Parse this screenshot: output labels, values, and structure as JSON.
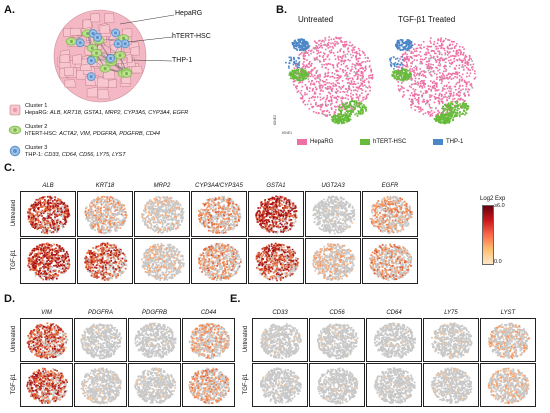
{
  "panels": {
    "a": "A.",
    "b": "B.",
    "c": "C.",
    "d": "D.",
    "e": "E."
  },
  "panel_a": {
    "labels": {
      "hepa": "HepaRG",
      "hsc": "hTERT-HSC",
      "thp": "THP-1"
    },
    "clusters": [
      {
        "title": "Cluster 1",
        "prefix": "HepaRG: ",
        "genes": "ALB, KRT18, GSTA1, MRP2, CYP3A5, CYP3A4, EGFR"
      },
      {
        "title": "Cluster 2",
        "prefix": "hTERT-HSC: ",
        "genes": "ACTA2, VIM, PDGFRA, PDGFRB, CD44"
      },
      {
        "title": "Cluster 3",
        "prefix": "THP-1: ",
        "genes": "CD33, CD64, CD56, LY75, LYST"
      }
    ]
  },
  "panel_b": {
    "conditions": [
      "Untreated",
      "TGF-β1 Treated"
    ],
    "legend": [
      {
        "name": "HepaRG",
        "color": "#ee6fa4"
      },
      {
        "name": "hTERT-HSC",
        "color": "#66bb3a"
      },
      {
        "name": "THP-1",
        "color": "#4a86c8"
      }
    ],
    "axis1": "tSNE1",
    "axis2": "tSNE2"
  },
  "row_labels": [
    "Untreated",
    "TGF-β1"
  ],
  "panel_c": {
    "genes": [
      "ALB",
      "KRT18",
      "MRP2",
      "CYP3A4/CYP3A5",
      "GSTA1",
      "UGT2A3",
      "EGFR"
    ],
    "levels_untreated": [
      0.95,
      0.45,
      0.25,
      0.55,
      0.95,
      0.05,
      0.5
    ],
    "levels_tgf": [
      0.95,
      0.8,
      0.3,
      0.55,
      0.85,
      0.35,
      0.55
    ],
    "colorbar": {
      "title": "Log2 Exp",
      "max": "≥6.0",
      "min": "0.0"
    }
  },
  "panel_d": {
    "genes": [
      "VIM",
      "PDGFRA",
      "PDGFRB",
      "CD44"
    ],
    "levels_untreated": [
      0.8,
      0.05,
      0.05,
      0.45
    ],
    "levels_tgf": [
      0.85,
      0.1,
      0.1,
      0.5
    ]
  },
  "panel_e": {
    "genes": [
      "CD33",
      "CD56",
      "CD64",
      "LY75",
      "LYST"
    ],
    "levels_untreated": [
      0.05,
      0.05,
      0.05,
      0.1,
      0.35
    ],
    "levels_tgf": [
      0.05,
      0.05,
      0.05,
      0.1,
      0.3
    ]
  },
  "colors": {
    "grey": "#c8c8c8",
    "low": "#fdd5a8",
    "mid": "#f4844a",
    "high": "#a50f15",
    "hepa": "#ee6fa4",
    "hsc": "#66bb3a",
    "thp": "#4a86c8"
  }
}
